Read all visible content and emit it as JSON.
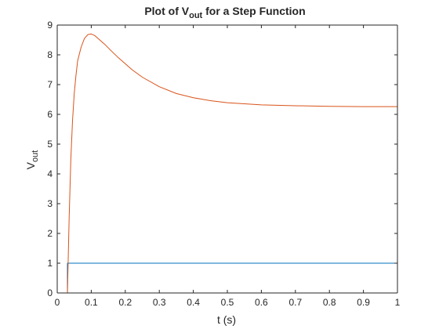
{
  "chart_data": {
    "type": "line",
    "title": {
      "prefix": "Plot of V",
      "subscript": "out",
      "suffix": " for a Step Function"
    },
    "xlabel": "t (s)",
    "ylabel": {
      "main": "V",
      "subscript": "out"
    },
    "xlim": [
      0,
      1
    ],
    "ylim": [
      0,
      9
    ],
    "xticks": [
      0,
      0.1,
      0.2,
      0.3,
      0.4,
      0.5,
      0.6,
      0.7,
      0.8,
      0.9,
      1
    ],
    "xtick_labels": [
      "0",
      "0.1",
      "0.2",
      "0.3",
      "0.4",
      "0.5",
      "0.6",
      "0.7",
      "0.8",
      "0.9",
      "1"
    ],
    "yticks": [
      0,
      1,
      2,
      3,
      4,
      5,
      6,
      7,
      8,
      9
    ],
    "ytick_labels": [
      "0",
      "1",
      "2",
      "3",
      "4",
      "5",
      "6",
      "7",
      "8",
      "9"
    ],
    "grid": false,
    "series": [
      {
        "color": "#0072BD",
        "x": [
          0,
          0.03,
          0.03,
          1
        ],
        "y": [
          0,
          0,
          1,
          1
        ]
      },
      {
        "color": "#D95319",
        "x": [
          0,
          0.03,
          0.035,
          0.04,
          0.045,
          0.05,
          0.055,
          0.06,
          0.07,
          0.08,
          0.09,
          0.1,
          0.11,
          0.12,
          0.14,
          0.16,
          0.18,
          0.2,
          0.22,
          0.25,
          0.3,
          0.35,
          0.4,
          0.45,
          0.5,
          0.6,
          0.7,
          0.8,
          0.9,
          1.0
        ],
        "y": [
          0,
          0,
          2.5,
          4.5,
          5.8,
          6.7,
          7.3,
          7.8,
          8.25,
          8.55,
          8.68,
          8.7,
          8.65,
          8.55,
          8.35,
          8.12,
          7.9,
          7.7,
          7.5,
          7.25,
          6.93,
          6.7,
          6.56,
          6.46,
          6.39,
          6.32,
          6.29,
          6.27,
          6.26,
          6.26
        ]
      }
    ]
  }
}
